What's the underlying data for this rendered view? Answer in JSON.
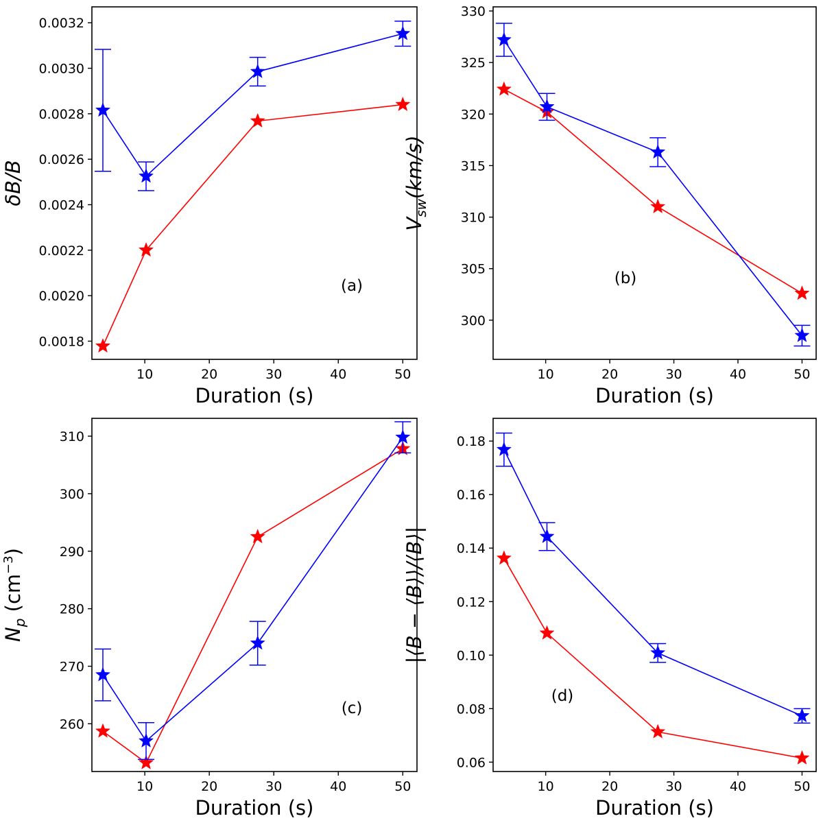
{
  "figure": {
    "series_colors": {
      "series1": "#0000ff",
      "series2": "#ff0000"
    }
  },
  "chart_data": [
    {
      "type": "line",
      "panel": "(a)",
      "xlabel": "Duration (s)",
      "ylabel": "δB/B",
      "xlim": [
        1.8,
        52.2
      ],
      "ylim": [
        0.00172,
        0.00327
      ],
      "xticks": [
        10,
        20,
        30,
        40,
        50
      ],
      "yticks": [
        0.0018,
        0.002,
        0.0022,
        0.0024,
        0.0026,
        0.0028,
        0.003,
        0.0032
      ],
      "ytick_labels": [
        "0.0018",
        "0.0020",
        "0.0022",
        "0.0024",
        "0.0026",
        "0.0028",
        "0.0030",
        "0.0032"
      ],
      "x": [
        3.5,
        10.2,
        27.5,
        50
      ],
      "series": [
        {
          "name": "series1",
          "values": [
            0.002815,
            0.002525,
            0.002985,
            0.003152
          ],
          "yerr": [
            0.000268,
            6.3e-05,
            6.3e-05,
            5.5e-05
          ]
        },
        {
          "name": "series2",
          "values": [
            0.001778,
            0.0022,
            0.002768,
            0.00284
          ]
        }
      ]
    },
    {
      "type": "line",
      "panel": "(b)",
      "xlabel": "Duration (s)",
      "ylabel": "V_sw(km/s)",
      "xlim": [
        1.8,
        52.2
      ],
      "ylim": [
        296.2,
        330.4
      ],
      "xticks": [
        10,
        20,
        30,
        40,
        50
      ],
      "yticks": [
        300,
        305,
        310,
        315,
        320,
        325,
        330
      ],
      "ytick_labels": [
        "300",
        "305",
        "310",
        "315",
        "320",
        "325",
        "330"
      ],
      "x": [
        3.5,
        10.2,
        27.5,
        50
      ],
      "series": [
        {
          "name": "series1",
          "values": [
            327.2,
            320.7,
            316.3,
            298.5
          ],
          "yerr": [
            1.6,
            1.3,
            1.4,
            1.0
          ]
        },
        {
          "name": "series2",
          "values": [
            322.4,
            320.2,
            311.0,
            302.6
          ]
        }
      ]
    },
    {
      "type": "line",
      "panel": "(c)",
      "xlabel": "Duration (s)",
      "ylabel": "N_p (cm^-3)",
      "xlim": [
        1.8,
        52.2
      ],
      "ylim": [
        251.7,
        313.1
      ],
      "xticks": [
        10,
        20,
        30,
        40,
        50
      ],
      "yticks": [
        260,
        270,
        280,
        290,
        300,
        310
      ],
      "ytick_labels": [
        "260",
        "270",
        "280",
        "290",
        "300",
        "310"
      ],
      "x": [
        3.5,
        10.2,
        27.5,
        50
      ],
      "series": [
        {
          "name": "series1",
          "values": [
            268.5,
            257.0,
            274.0,
            309.8
          ],
          "yerr": [
            4.5,
            3.2,
            3.8,
            2.7
          ]
        },
        {
          "name": "series2",
          "values": [
            258.7,
            253.2,
            292.5,
            307.8
          ]
        }
      ]
    },
    {
      "type": "line",
      "panel": "(d)",
      "xlabel": "Duration (s)",
      "ylabel": "|⟨B − ⟨B⟩⟩/⟨B⟩|",
      "xlim": [
        1.8,
        52.2
      ],
      "ylim": [
        0.0565,
        0.1885
      ],
      "xticks": [
        10,
        20,
        30,
        40,
        50
      ],
      "yticks": [
        0.06,
        0.08,
        0.1,
        0.12,
        0.14,
        0.16,
        0.18
      ],
      "ytick_labels": [
        "0.06",
        "0.08",
        "0.10",
        "0.12",
        "0.14",
        "0.16",
        "0.18"
      ],
      "x": [
        3.5,
        10.2,
        27.5,
        50
      ],
      "series": [
        {
          "name": "series1",
          "values": [
            0.1768,
            0.1443,
            0.1008,
            0.0773
          ],
          "yerr": [
            0.0062,
            0.0052,
            0.0035,
            0.0027
          ]
        },
        {
          "name": "series2",
          "values": [
            0.1362,
            0.1082,
            0.0713,
            0.0615
          ]
        }
      ]
    }
  ]
}
